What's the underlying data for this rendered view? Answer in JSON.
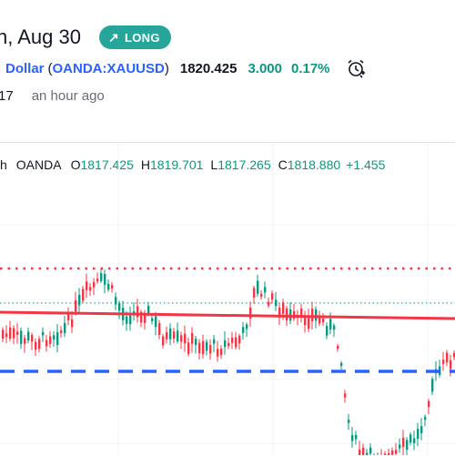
{
  "header": {
    "date_text": "n, Aug 30",
    "badge_label": "LONG",
    "badge_icon": "arrow-up-right-icon"
  },
  "symbol": {
    "name_fragment": "Dollar",
    "open_paren": "(",
    "ticker": "OANDA:XAUUSD",
    "close_paren": ")",
    "price": "1820.425",
    "change": "3.000",
    "change_pct": "0.17%",
    "alarm_icon": "alarm-clock-icon"
  },
  "meta": {
    "time_fragment": "17",
    "posted_ago": "an hour ago"
  },
  "chart_header": {
    "interval_fragment": "h",
    "source": "OANDA",
    "open_label": "O",
    "open_value": "1817.425",
    "high_label": "H",
    "high_value": "1819.701",
    "low_label": "L",
    "low_value": "1817.265",
    "close_label": "C",
    "close_value": "1818.880",
    "change_value": "+1.455"
  },
  "colors": {
    "up": "#089981",
    "down": "#f23645",
    "resistance_dotted": "#f23645",
    "trendline": "#f23645",
    "support_dashed": "#2962ff",
    "badge": "#26a69a",
    "link": "#2962ff"
  },
  "chart_data": {
    "type": "candlestick",
    "overlays": [
      "red dotted horizontal line (upper)",
      "green dotted horizontal line",
      "red trendline",
      "blue dashed horizontal line (support)"
    ]
  }
}
